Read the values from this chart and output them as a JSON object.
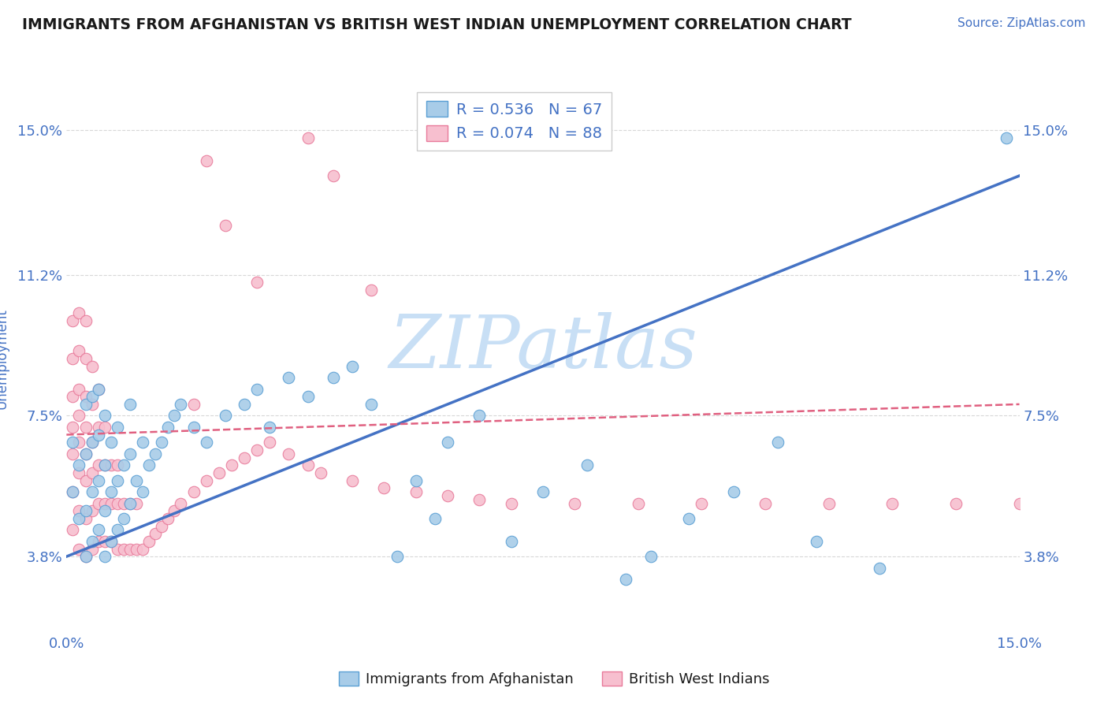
{
  "title": "IMMIGRANTS FROM AFGHANISTAN VS BRITISH WEST INDIAN UNEMPLOYMENT CORRELATION CHART",
  "source_text": "Source: ZipAtlas.com",
  "ylabel": "Unemployment",
  "xlim": [
    0.0,
    0.15
  ],
  "ylim": [
    0.018,
    0.162
  ],
  "yticks": [
    0.038,
    0.075,
    0.112,
    0.15
  ],
  "ytick_labels": [
    "3.8%",
    "7.5%",
    "11.2%",
    "15.0%"
  ],
  "xticks": [
    0.0,
    0.15
  ],
  "xtick_labels": [
    "0.0%",
    "15.0%"
  ],
  "blue_color": "#a8cce8",
  "pink_color": "#f7bfcf",
  "blue_edge": "#5a9fd4",
  "pink_edge": "#e87a9a",
  "line_blue": "#4472c4",
  "line_pink": "#e06080",
  "legend_r_blue": "R = 0.536",
  "legend_n_blue": "N = 67",
  "legend_r_pink": "R = 0.074",
  "legend_n_pink": "N = 88",
  "legend_label_blue": "Immigrants from Afghanistan",
  "legend_label_pink": "British West Indians",
  "watermark": "ZIPatlas",
  "watermark_color": "#c8dff5",
  "title_color": "#1a1a1a",
  "axis_label_color": "#4472c4",
  "tick_label_color": "#4472c4",
  "grid_color": "#d8d8d8",
  "background_color": "#ffffff",
  "blue_scatter_x": [
    0.001,
    0.001,
    0.002,
    0.002,
    0.003,
    0.003,
    0.003,
    0.003,
    0.004,
    0.004,
    0.004,
    0.004,
    0.005,
    0.005,
    0.005,
    0.005,
    0.006,
    0.006,
    0.006,
    0.006,
    0.007,
    0.007,
    0.007,
    0.008,
    0.008,
    0.008,
    0.009,
    0.009,
    0.01,
    0.01,
    0.01,
    0.011,
    0.012,
    0.012,
    0.013,
    0.014,
    0.015,
    0.016,
    0.017,
    0.018,
    0.02,
    0.022,
    0.025,
    0.028,
    0.03,
    0.032,
    0.035,
    0.038,
    0.042,
    0.045,
    0.048,
    0.052,
    0.055,
    0.058,
    0.06,
    0.065,
    0.07,
    0.075,
    0.082,
    0.088,
    0.092,
    0.098,
    0.105,
    0.112,
    0.118,
    0.128,
    0.148
  ],
  "blue_scatter_y": [
    0.055,
    0.068,
    0.048,
    0.062,
    0.038,
    0.05,
    0.065,
    0.078,
    0.042,
    0.055,
    0.068,
    0.08,
    0.045,
    0.058,
    0.07,
    0.082,
    0.038,
    0.05,
    0.062,
    0.075,
    0.042,
    0.055,
    0.068,
    0.045,
    0.058,
    0.072,
    0.048,
    0.062,
    0.052,
    0.065,
    0.078,
    0.058,
    0.055,
    0.068,
    0.062,
    0.065,
    0.068,
    0.072,
    0.075,
    0.078,
    0.072,
    0.068,
    0.075,
    0.078,
    0.082,
    0.072,
    0.085,
    0.08,
    0.085,
    0.088,
    0.078,
    0.038,
    0.058,
    0.048,
    0.068,
    0.075,
    0.042,
    0.055,
    0.062,
    0.032,
    0.038,
    0.048,
    0.055,
    0.068,
    0.042,
    0.035,
    0.148
  ],
  "pink_scatter_x": [
    0.001,
    0.001,
    0.001,
    0.001,
    0.001,
    0.001,
    0.001,
    0.002,
    0.002,
    0.002,
    0.002,
    0.002,
    0.002,
    0.002,
    0.002,
    0.003,
    0.003,
    0.003,
    0.003,
    0.003,
    0.003,
    0.003,
    0.003,
    0.004,
    0.004,
    0.004,
    0.004,
    0.004,
    0.004,
    0.005,
    0.005,
    0.005,
    0.005,
    0.005,
    0.006,
    0.006,
    0.006,
    0.006,
    0.007,
    0.007,
    0.007,
    0.008,
    0.008,
    0.008,
    0.009,
    0.009,
    0.01,
    0.01,
    0.011,
    0.011,
    0.012,
    0.013,
    0.014,
    0.015,
    0.016,
    0.017,
    0.018,
    0.02,
    0.022,
    0.024,
    0.026,
    0.028,
    0.03,
    0.032,
    0.035,
    0.038,
    0.04,
    0.045,
    0.05,
    0.055,
    0.06,
    0.065,
    0.07,
    0.08,
    0.09,
    0.1,
    0.11,
    0.12,
    0.13,
    0.14,
    0.15,
    0.025,
    0.03,
    0.038,
    0.042,
    0.048,
    0.02,
    0.022
  ],
  "pink_scatter_y": [
    0.045,
    0.055,
    0.065,
    0.072,
    0.08,
    0.09,
    0.1,
    0.04,
    0.05,
    0.06,
    0.068,
    0.075,
    0.082,
    0.092,
    0.102,
    0.038,
    0.048,
    0.058,
    0.065,
    0.072,
    0.08,
    0.09,
    0.1,
    0.04,
    0.05,
    0.06,
    0.068,
    0.078,
    0.088,
    0.042,
    0.052,
    0.062,
    0.072,
    0.082,
    0.042,
    0.052,
    0.062,
    0.072,
    0.042,
    0.052,
    0.062,
    0.04,
    0.052,
    0.062,
    0.04,
    0.052,
    0.04,
    0.052,
    0.04,
    0.052,
    0.04,
    0.042,
    0.044,
    0.046,
    0.048,
    0.05,
    0.052,
    0.055,
    0.058,
    0.06,
    0.062,
    0.064,
    0.066,
    0.068,
    0.065,
    0.062,
    0.06,
    0.058,
    0.056,
    0.055,
    0.054,
    0.053,
    0.052,
    0.052,
    0.052,
    0.052,
    0.052,
    0.052,
    0.052,
    0.052,
    0.052,
    0.125,
    0.11,
    0.148,
    0.138,
    0.108,
    0.078,
    0.142
  ],
  "blue_line_x": [
    0.0,
    0.15
  ],
  "blue_line_y": [
    0.038,
    0.138
  ],
  "pink_line_x": [
    0.0,
    0.15
  ],
  "pink_line_y": [
    0.07,
    0.078
  ]
}
